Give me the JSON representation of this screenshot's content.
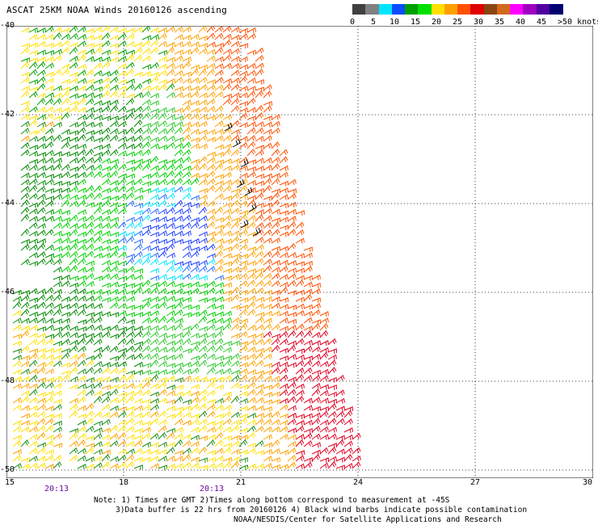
{
  "title": "ASCAT 25KM NOAA Winds 20160126 ascending",
  "legend": {
    "bins": [
      {
        "color": "#404040"
      },
      {
        "color": "#808080"
      },
      {
        "color": "#00e5ff"
      },
      {
        "color": "#0a4cff"
      },
      {
        "color": "#00a000"
      },
      {
        "color": "#00e000"
      },
      {
        "color": "#ffe000"
      },
      {
        "color": "#ffa000"
      },
      {
        "color": "#ff5000"
      },
      {
        "color": "#e00000"
      },
      {
        "color": "#8b4513"
      },
      {
        "color": "#d2691e"
      },
      {
        "color": "#ff00ff"
      },
      {
        "color": "#a000c0"
      },
      {
        "color": "#5000a0"
      },
      {
        "color": "#000070"
      }
    ],
    "labels": [
      "0",
      "5",
      "10",
      "15",
      "20",
      "25",
      "30",
      "35",
      "40",
      "45",
      ">50 knots"
    ]
  },
  "axes": {
    "lon_ticks": [
      "15",
      "18",
      "21",
      "24",
      "27",
      "30"
    ],
    "lat_ticks": [
      "-40",
      "-42",
      "-44",
      "-46",
      "-48",
      "-50"
    ],
    "time_labels": [
      "20:13",
      "20:13"
    ]
  },
  "notes": [
    "Note: 1) Times are GMT 2)Times along bottom correspond to measurement at -45S",
    "3)Data buffer is 22 hrs from 20160126 4) Black wind barbs indicate possible contamination",
    "NOAA/NESDIS/Center for Satellite Applications and Research"
  ]
}
